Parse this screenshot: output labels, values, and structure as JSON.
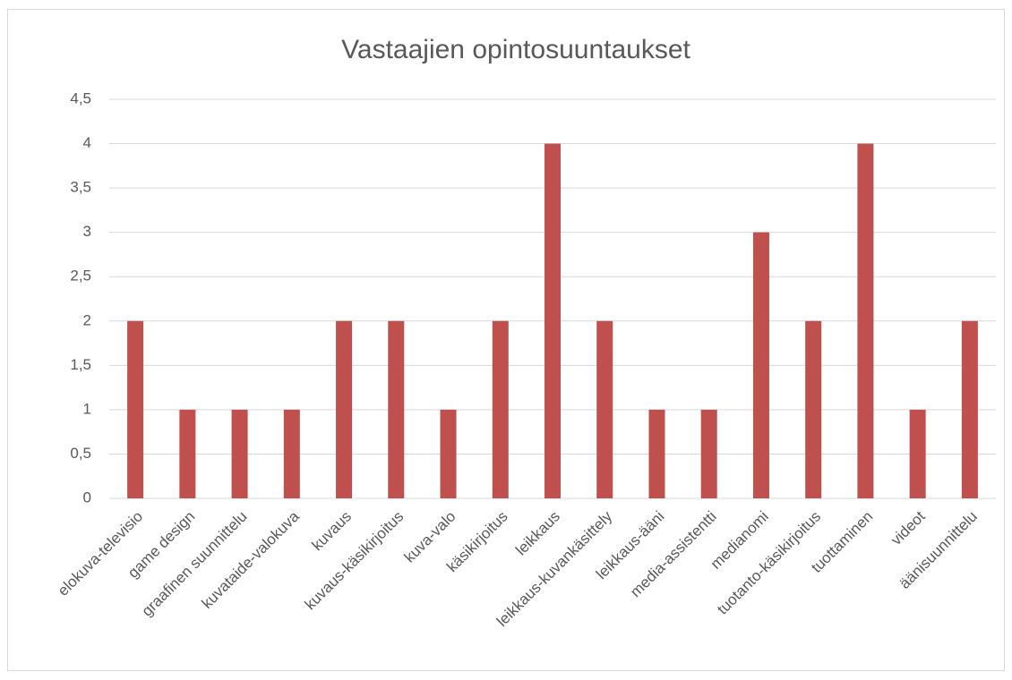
{
  "chart_data": {
    "type": "bar",
    "title": "Vastaajien opintosuuntaukset",
    "categories": [
      "elokuva-televisio",
      "game design",
      "graafinen suunnittelu",
      "kuvataide-valokuva",
      "kuvaus",
      "kuvaus-käsikirjoitus",
      "kuva-valo",
      "käsikirjoitus",
      "leikkaus",
      "leikkaus-kuvankäsittely",
      "leikkaus-ääni",
      "media-assistentti",
      "medianomi",
      "tuotanto-käsikirjoitus",
      "tuottaminen",
      "videot",
      "äänisuunnittelu"
    ],
    "values": [
      2,
      1,
      1,
      1,
      2,
      2,
      1,
      2,
      4,
      2,
      1,
      1,
      3,
      2,
      4,
      1,
      2
    ],
    "color": "#c0504d",
    "ylim": [
      0,
      4.5
    ],
    "yticks": [
      0,
      {
        "value": 0.5,
        "label": "0,5"
      },
      1,
      {
        "value": 1.5,
        "label": "1,5"
      },
      2,
      {
        "value": 2.5,
        "label": "2,5"
      },
      3,
      {
        "value": 3.5,
        "label": "3,5"
      },
      4,
      {
        "value": 4.5,
        "label": "4,5"
      }
    ],
    "grid": true
  }
}
